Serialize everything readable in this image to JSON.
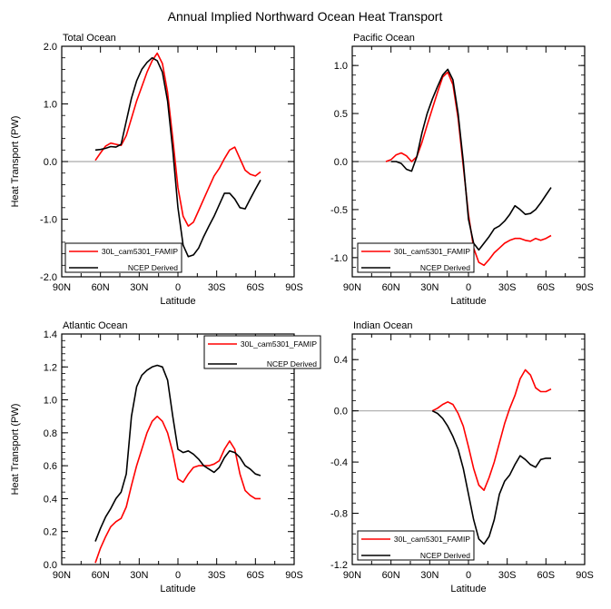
{
  "figure_title": "Annual Implied Northward Ocean Heat Transport",
  "colors": {
    "model": "#ff0000",
    "obs": "#000000",
    "zero_line": "#aaaaaa"
  },
  "chart_data": [
    {
      "type": "line",
      "title": "Total Ocean",
      "xlabel": "Latitude",
      "ylabel": "Heat Transport (PW)",
      "xlim": [
        -90,
        90
      ],
      "xticks": [
        "90N",
        "60N",
        "30N",
        "0",
        "30S",
        "60S",
        "90S"
      ],
      "ylim": [
        -2.0,
        2.0
      ],
      "yticks": [
        "-2.0",
        "-1.0",
        "0.0",
        "1.0",
        "2.0"
      ],
      "ytick_values": [
        -2.0,
        -1.0,
        0.0,
        1.0,
        2.0
      ],
      "legend_position": "bottom-left",
      "series": [
        {
          "name": "30L_cam5301_FAMIP",
          "color": "#ff0000",
          "x": [
            -64,
            -60,
            -56,
            -52,
            -48,
            -44,
            -40,
            -36,
            -32,
            -28,
            -24,
            -20,
            -16,
            -12,
            -8,
            -4,
            0,
            4,
            8,
            12,
            16,
            20,
            24,
            28,
            32,
            36,
            40,
            44,
            48,
            52,
            56,
            60,
            64
          ],
          "y": [
            0.02,
            0.15,
            0.27,
            0.32,
            0.3,
            0.28,
            0.45,
            0.75,
            1.05,
            1.3,
            1.55,
            1.75,
            1.88,
            1.7,
            1.2,
            0.4,
            -0.45,
            -0.95,
            -1.12,
            -1.05,
            -0.85,
            -0.65,
            -0.45,
            -0.25,
            -0.12,
            0.05,
            0.2,
            0.25,
            0.05,
            -0.15,
            -0.22,
            -0.25,
            -0.18
          ]
        },
        {
          "name": "NCEP Derived",
          "color": "#000000",
          "x": [
            -64,
            -60,
            -56,
            -52,
            -48,
            -44,
            -40,
            -36,
            -32,
            -28,
            -24,
            -20,
            -16,
            -12,
            -8,
            -4,
            0,
            4,
            8,
            12,
            16,
            20,
            24,
            28,
            32,
            36,
            40,
            44,
            48,
            52,
            56,
            60,
            64
          ],
          "y": [
            0.2,
            0.21,
            0.23,
            0.26,
            0.25,
            0.3,
            0.7,
            1.1,
            1.4,
            1.6,
            1.72,
            1.8,
            1.75,
            1.55,
            1.05,
            0.2,
            -0.8,
            -1.45,
            -1.65,
            -1.62,
            -1.5,
            -1.3,
            -1.12,
            -0.95,
            -0.75,
            -0.55,
            -0.55,
            -0.65,
            -0.8,
            -0.82,
            -0.65,
            -0.48,
            -0.32
          ]
        }
      ]
    },
    {
      "type": "line",
      "title": "Pacific Ocean",
      "xlabel": "Latitude",
      "ylabel": "",
      "xlim": [
        -90,
        90
      ],
      "xticks": [
        "90N",
        "60N",
        "30N",
        "0",
        "30S",
        "60S",
        "90S"
      ],
      "ylim": [
        -1.2,
        1.2
      ],
      "yticks": [
        "-1.0",
        "-0.5",
        "0.0",
        "0.5",
        "1.0"
      ],
      "ytick_values": [
        -1.0,
        -0.5,
        0.0,
        0.5,
        1.0
      ],
      "legend_position": "bottom-left",
      "series": [
        {
          "name": "30L_cam5301_FAMIP",
          "color": "#ff0000",
          "x": [
            -64,
            -60,
            -56,
            -52,
            -48,
            -44,
            -40,
            -36,
            -32,
            -28,
            -24,
            -20,
            -16,
            -12,
            -8,
            -4,
            0,
            4,
            8,
            12,
            16,
            20,
            24,
            28,
            32,
            36,
            40,
            44,
            48,
            52,
            56,
            60,
            64
          ],
          "y": [
            0.0,
            0.02,
            0.07,
            0.09,
            0.06,
            0.0,
            0.05,
            0.2,
            0.38,
            0.55,
            0.72,
            0.88,
            0.93,
            0.8,
            0.45,
            -0.05,
            -0.55,
            -0.9,
            -1.05,
            -1.08,
            -1.02,
            -0.95,
            -0.9,
            -0.85,
            -0.82,
            -0.8,
            -0.8,
            -0.82,
            -0.83,
            -0.8,
            -0.82,
            -0.8,
            -0.77
          ]
        },
        {
          "name": "NCEP Derived",
          "color": "#000000",
          "x": [
            -60,
            -56,
            -52,
            -48,
            -44,
            -40,
            -36,
            -32,
            -28,
            -24,
            -20,
            -16,
            -12,
            -8,
            -4,
            0,
            4,
            8,
            12,
            16,
            20,
            24,
            28,
            32,
            36,
            40,
            44,
            48,
            52,
            56,
            60,
            64
          ],
          "y": [
            0.0,
            0.0,
            -0.02,
            -0.08,
            -0.1,
            0.05,
            0.3,
            0.5,
            0.65,
            0.78,
            0.9,
            0.96,
            0.85,
            0.5,
            0.0,
            -0.6,
            -0.85,
            -0.92,
            -0.85,
            -0.78,
            -0.7,
            -0.67,
            -0.62,
            -0.55,
            -0.46,
            -0.5,
            -0.55,
            -0.54,
            -0.5,
            -0.43,
            -0.35,
            -0.27
          ]
        }
      ]
    },
    {
      "type": "line",
      "title": "Atlantic Ocean",
      "xlabel": "Latitude",
      "ylabel": "Heat Transport (PW)",
      "xlim": [
        -90,
        90
      ],
      "xticks": [
        "90N",
        "60N",
        "30N",
        "0",
        "30S",
        "60S",
        "90S"
      ],
      "ylim": [
        0.0,
        1.4
      ],
      "yticks": [
        "0.0",
        "0.2",
        "0.4",
        "0.6",
        "0.8",
        "1.0",
        "1.2",
        "1.4"
      ],
      "ytick_values": [
        0.0,
        0.2,
        0.4,
        0.6,
        0.8,
        1.0,
        1.2,
        1.4
      ],
      "legend_position": "top-right",
      "series": [
        {
          "name": "30L_cam5301_FAMIP",
          "color": "#ff0000",
          "x": [
            -64,
            -60,
            -56,
            -52,
            -48,
            -44,
            -40,
            -36,
            -32,
            -28,
            -24,
            -20,
            -16,
            -12,
            -8,
            -4,
            0,
            4,
            8,
            12,
            16,
            20,
            24,
            28,
            32,
            36,
            40,
            44,
            48,
            52,
            56,
            60,
            64
          ],
          "y": [
            0.01,
            0.1,
            0.17,
            0.23,
            0.26,
            0.28,
            0.35,
            0.48,
            0.6,
            0.7,
            0.8,
            0.87,
            0.9,
            0.87,
            0.8,
            0.68,
            0.52,
            0.5,
            0.55,
            0.59,
            0.6,
            0.6,
            0.6,
            0.61,
            0.63,
            0.7,
            0.75,
            0.7,
            0.55,
            0.45,
            0.42,
            0.4,
            0.4
          ]
        },
        {
          "name": "NCEP Derived",
          "color": "#000000",
          "x": [
            -64,
            -60,
            -56,
            -52,
            -48,
            -44,
            -40,
            -36,
            -32,
            -28,
            -24,
            -20,
            -16,
            -12,
            -8,
            -4,
            0,
            4,
            8,
            12,
            16,
            20,
            24,
            28,
            32,
            36,
            40,
            44,
            48,
            52,
            56,
            60,
            64
          ],
          "y": [
            0.14,
            0.22,
            0.29,
            0.34,
            0.4,
            0.44,
            0.55,
            0.9,
            1.08,
            1.15,
            1.18,
            1.2,
            1.21,
            1.2,
            1.12,
            0.9,
            0.7,
            0.68,
            0.69,
            0.67,
            0.64,
            0.6,
            0.58,
            0.56,
            0.59,
            0.65,
            0.69,
            0.68,
            0.65,
            0.6,
            0.58,
            0.55,
            0.54
          ]
        }
      ]
    },
    {
      "type": "line",
      "title": "Indian Ocean",
      "xlabel": "Latitude",
      "ylabel": "",
      "xlim": [
        -90,
        90
      ],
      "xticks": [
        "90N",
        "60N",
        "30N",
        "0",
        "30S",
        "60S",
        "90S"
      ],
      "ylim": [
        -1.2,
        0.6
      ],
      "yticks": [
        "-1.2",
        "-0.8",
        "-0.4",
        "0.0",
        "0.4"
      ],
      "ytick_values": [
        -1.2,
        -0.8,
        -0.4,
        0.0,
        0.4
      ],
      "legend_position": "bottom-left",
      "series": [
        {
          "name": "30L_cam5301_FAMIP",
          "color": "#ff0000",
          "x": [
            -28,
            -24,
            -20,
            -16,
            -12,
            -8,
            -4,
            0,
            4,
            8,
            12,
            16,
            20,
            24,
            28,
            32,
            36,
            40,
            44,
            48,
            52,
            56,
            60,
            64
          ],
          "y": [
            0.0,
            0.02,
            0.05,
            0.07,
            0.05,
            -0.02,
            -0.12,
            -0.28,
            -0.45,
            -0.58,
            -0.62,
            -0.52,
            -0.4,
            -0.25,
            -0.1,
            0.02,
            0.12,
            0.25,
            0.32,
            0.28,
            0.18,
            0.15,
            0.15,
            0.17
          ]
        },
        {
          "name": "NCEP Derived",
          "color": "#000000",
          "x": [
            -28,
            -24,
            -20,
            -16,
            -12,
            -8,
            -4,
            0,
            4,
            8,
            12,
            16,
            20,
            24,
            28,
            32,
            36,
            40,
            44,
            48,
            52,
            56,
            60,
            64
          ],
          "y": [
            0.0,
            -0.02,
            -0.06,
            -0.12,
            -0.2,
            -0.3,
            -0.45,
            -0.65,
            -0.85,
            -1.0,
            -1.04,
            -0.98,
            -0.85,
            -0.65,
            -0.55,
            -0.5,
            -0.42,
            -0.35,
            -0.38,
            -0.42,
            -0.44,
            -0.38,
            -0.37,
            -0.37
          ]
        }
      ]
    }
  ]
}
